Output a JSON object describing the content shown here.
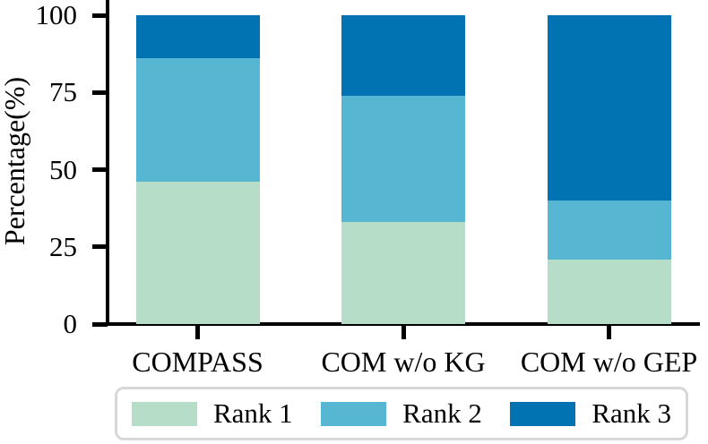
{
  "figure": {
    "background_color": "#ffffff",
    "axis_color": "#000000",
    "legend_border_color": "#d8d8d8"
  },
  "chart_data": {
    "type": "bar",
    "stacked": true,
    "title": "",
    "xlabel": "",
    "ylabel": "Percentage(%)",
    "ylim": [
      0,
      100
    ],
    "yticks": [
      "0",
      "25",
      "50",
      "75",
      "100"
    ],
    "ytick_values": [
      0,
      25,
      50,
      75,
      100
    ],
    "grid": false,
    "legend_position": "bottom",
    "categories": [
      "COMPASS",
      "COM w/o KG",
      "COM w/o GEP"
    ],
    "series": [
      {
        "name": "Rank 1",
        "color": "#b5ddc8",
        "values": [
          46,
          33,
          21
        ]
      },
      {
        "name": "Rank 2",
        "color": "#57b7d2",
        "values": [
          40,
          41,
          19
        ]
      },
      {
        "name": "Rank 3",
        "color": "#0173b2",
        "values": [
          14,
          26,
          60
        ]
      }
    ]
  }
}
